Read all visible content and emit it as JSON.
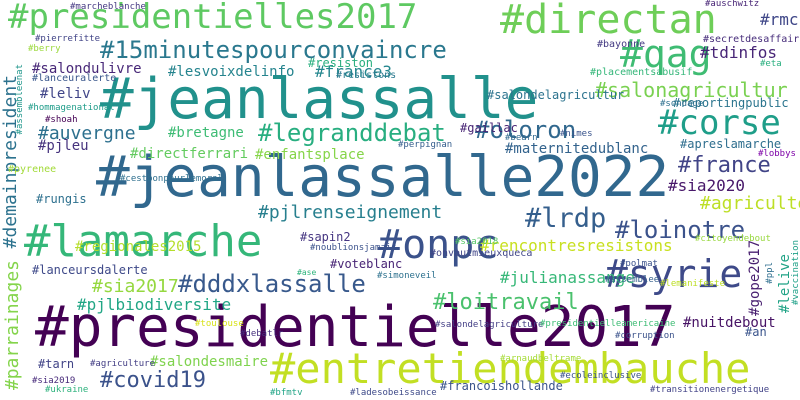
{
  "words": [
    {
      "text": "#jeanlassalle",
      "color": "#21918c"
    },
    {
      "text": "#jeanlassalle2022",
      "color": "#31688e"
    },
    {
      "text": "#presidentielle2017",
      "color": "#440154"
    },
    {
      "text": "#lamarche",
      "color": "#35b779"
    },
    {
      "text": "#presidentielles2017",
      "color": "#5ec962"
    },
    {
      "text": "#directan",
      "color": "#6ece58"
    },
    {
      "text": "#entretiendembauche",
      "color": "#c2df23"
    },
    {
      "text": "#onpc",
      "color": "#3b528b"
    },
    {
      "text": "#syrie",
      "color": "#3e4a89"
    },
    {
      "text": "#corse",
      "color": "#1f9e89"
    },
    {
      "text": "#qag",
      "color": "#3fbc73"
    },
    {
      "text": "#15minutespourconvaincre",
      "color": "#2a788e"
    },
    {
      "text": "#legranddebat",
      "color": "#28ae80"
    },
    {
      "text": "#oloron",
      "color": "#31688e"
    },
    {
      "text": "#dddxlassalle",
      "color": "#38598c"
    },
    {
      "text": "#lrdp",
      "color": "#355f8d"
    },
    {
      "text": "#loinotre",
      "color": "#3b528b"
    },
    {
      "text": "#france",
      "color": "#414487"
    },
    {
      "text": "#loitravail",
      "color": "#4ac16d"
    },
    {
      "text": "#covid19",
      "color": "#3b528b"
    },
    {
      "text": "#salonagricultur",
      "color": "#7ad151"
    },
    {
      "text": "#demainpresident",
      "color": "#2c728e"
    },
    {
      "text": "#auvergne",
      "color": "#2d708e"
    },
    {
      "text": "#parrainages",
      "color": "#84d44b"
    },
    {
      "text": "#pjlrenseignement",
      "color": "#277f8e"
    },
    {
      "text": "#sia2017",
      "color": "#95d840"
    },
    {
      "text": "#agriculteur",
      "color": "#bddf26"
    },
    {
      "text": "#rencontresresistons",
      "color": "#c8e020"
    },
    {
      "text": "#julianassange",
      "color": "#37b878"
    },
    {
      "text": "#pjlbiodiversite",
      "color": "#21a685"
    },
    {
      "text": "#regionales2015",
      "color": "#b5de2b"
    },
    {
      "text": "#maternitedublanc",
      "color": "#33638d"
    },
    {
      "text": "#france3",
      "color": "#24868e"
    },
    {
      "text": "#rmc",
      "color": "#3f4788"
    },
    {
      "text": "#tdinfos",
      "color": "#482677"
    },
    {
      "text": "#sia2020",
      "color": "#48186a"
    },
    {
      "text": "#salondesmaire",
      "color": "#7fd34e"
    },
    {
      "text": "#directferrari",
      "color": "#63cb5f"
    },
    {
      "text": "#enfantsplace",
      "color": "#86d549"
    },
    {
      "text": "#lesvoixdelinfo",
      "color": "#25848e"
    },
    {
      "text": "#leliv",
      "color": "#404588"
    },
    {
      "text": "#salondulivre",
      "color": "#482878"
    },
    {
      "text": "#bretagne",
      "color": "#3dbc74"
    },
    {
      "text": "#voteblanc",
      "color": "#482475"
    },
    {
      "text": "#sapin2",
      "color": "#453581"
    },
    {
      "text": "#gope2017",
      "color": "#481f70"
    },
    {
      "text": "#lelive",
      "color": "#20a386"
    },
    {
      "text": "#nuitdebout",
      "color": "#471365"
    },
    {
      "text": "#pjleu",
      "color": "#46337e"
    },
    {
      "text": "#lanceursdalerte",
      "color": "#3e4989"
    },
    {
      "text": "#reportingpublic",
      "color": "#2b758e"
    },
    {
      "text": "#apreslamarche",
      "color": "#2e6e8e"
    },
    {
      "text": "#tarn",
      "color": "#414487"
    },
    {
      "text": "#gaillac",
      "color": "#482475"
    },
    {
      "text": "#salondelagricultur",
      "color": "#2c738e"
    },
    {
      "text": "#resiston",
      "color": "#29af7f"
    },
    {
      "text": "#resistons",
      "color": "#2a788e"
    },
    {
      "text": "#bayonne",
      "color": "#443a83"
    },
    {
      "text": "#secretdesaffaire",
      "color": "#472d7b"
    },
    {
      "text": "#placementsabusif",
      "color": "#34b679"
    },
    {
      "text": "#lanceuralerte",
      "color": "#39568c"
    },
    {
      "text": "#hommagenational",
      "color": "#1e9c89"
    },
    {
      "text": "#assembleenat",
      "color": "#1f968b"
    },
    {
      "text": "#shoah",
      "color": "#440154"
    },
    {
      "text": "#pyrenee",
      "color": "#a2da37"
    },
    {
      "text": "#rungis",
      "color": "#2d708e"
    },
    {
      "text": "#cestbonpourlemoral",
      "color": "#2e6f8e"
    },
    {
      "text": "#perpignan",
      "color": "#355e8d"
    },
    {
      "text": "#onvautmieuxqueca",
      "color": "#404588"
    },
    {
      "text": "#polmat",
      "color": "#3b518b"
    },
    {
      "text": "#citoyendebout",
      "color": "#98d83e"
    },
    {
      "text": "#lobbys",
      "color": "#7e03a8"
    },
    {
      "text": "#vaccination",
      "color": "#1fa088"
    },
    {
      "text": "#ppl",
      "color": "#2e6e8e"
    },
    {
      "text": "#an",
      "color": "#3a548c"
    },
    {
      "text": "#simoneveil",
      "color": "#2d718e"
    },
    {
      "text": "#ase",
      "color": "#2fb47c"
    },
    {
      "text": "#assemblee",
      "color": "#355f8d"
    },
    {
      "text": "#salondelagriculture",
      "color": "#433e85"
    },
    {
      "text": "#presidentielleamericaine",
      "color": "#3dbc74"
    },
    {
      "text": "#corruption",
      "color": "#3b528b"
    },
    {
      "text": "#debatlr",
      "color": "#46307e"
    },
    {
      "text": "#toulouse",
      "color": "#d8e219"
    },
    {
      "text": "#agriculture",
      "color": "#433e85"
    },
    {
      "text": "#sia2019",
      "color": "#472a7a"
    },
    {
      "text": "#ukraine",
      "color": "#2db27d"
    },
    {
      "text": "#bfmtv",
      "color": "#20a486"
    },
    {
      "text": "#ladesobeissance",
      "color": "#3e4a89"
    },
    {
      "text": "#francoishollande",
      "color": "#3a538b"
    },
    {
      "text": "#transitionenergetique",
      "color": "#414287"
    },
    {
      "text": "#marcheblanche",
      "color": "#453882"
    },
    {
      "text": "#pierrefitte",
      "color": "#414487"
    },
    {
      "text": "#berry",
      "color": "#9bd93c"
    },
    {
      "text": "#auschwitz",
      "color": "#482576"
    },
    {
      "text": "#eta",
      "color": "#29af7f"
    },
    {
      "text": "#sondage",
      "color": "#2d708e"
    },
    {
      "text": "#bearn",
      "color": "#30688e"
    },
    {
      "text": "#nimes",
      "color": "#3a548c"
    },
    {
      "text": "#sia2018",
      "color": "#56c667"
    },
    {
      "text": "#lemanifeste",
      "color": "#bddf26"
    },
    {
      "text": "#noublionsjamais",
      "color": "#3b528b"
    },
    {
      "text": "#arnaudbeltrame",
      "color": "#a5db36"
    },
    {
      "text": "#ecoleinclusive",
      "color": "#3b528b"
    }
  ]
}
